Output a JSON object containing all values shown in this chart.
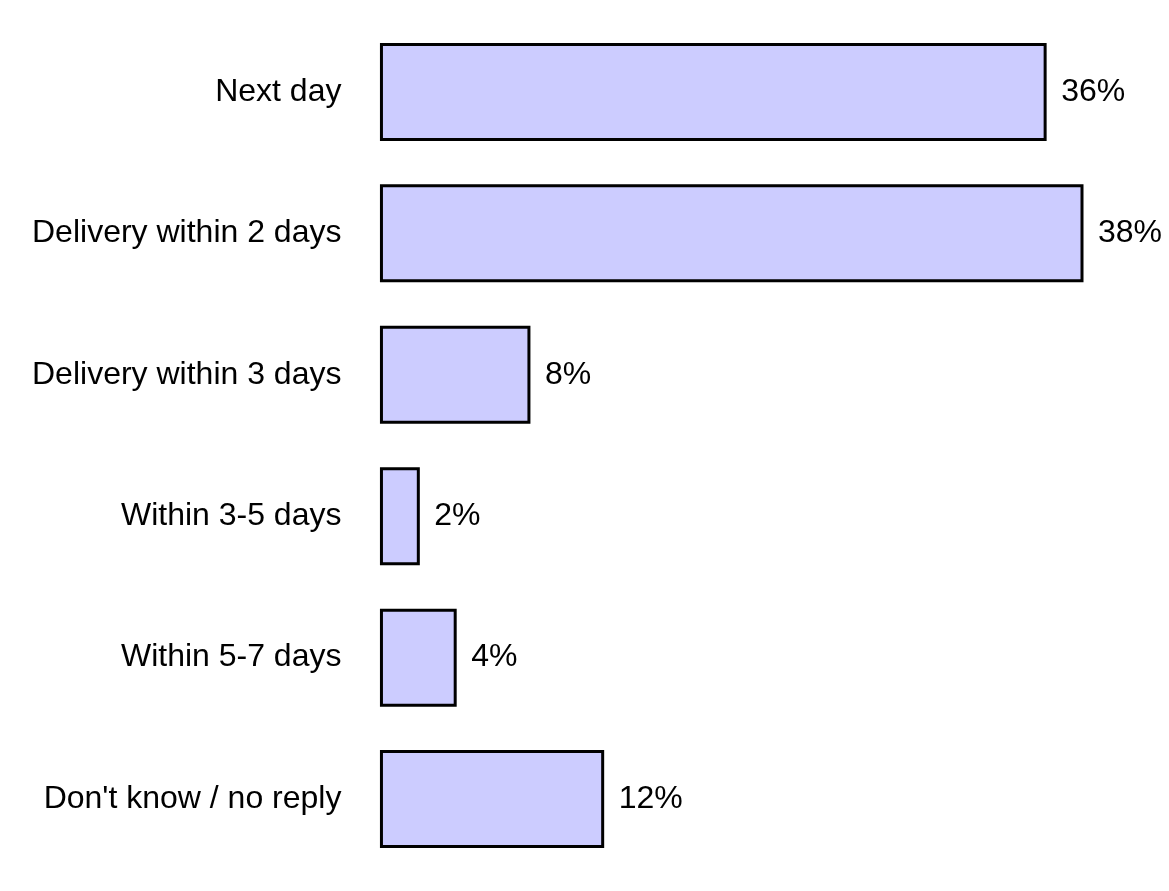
{
  "chart_data": {
    "type": "bar",
    "orientation": "horizontal",
    "categories": [
      "Next day",
      "Delivery within 2 days",
      "Delivery within 3 days",
      "Within 3-5 days",
      "Within 5-7 days",
      "Don't know / no reply"
    ],
    "values": [
      36,
      38,
      8,
      2,
      4,
      12
    ],
    "value_labels": [
      "36%",
      "38%",
      "8%",
      "2%",
      "4%",
      "12%"
    ],
    "color": "#ccccff"
  }
}
